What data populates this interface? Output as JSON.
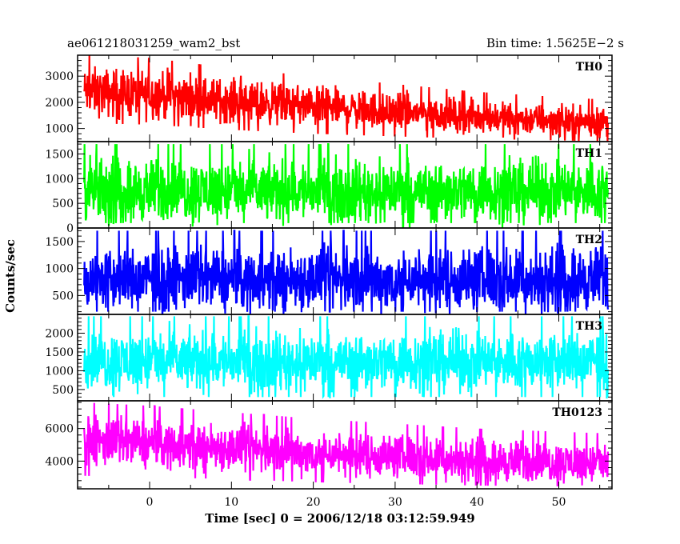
{
  "header": {
    "left": "ae061218031259_wam2_bst",
    "right": "Bin time: 1.5625E−2 s"
  },
  "chart_data": {
    "type": "line",
    "title": "ae061218031259_wam2_bst",
    "subtitle": "Bin time: 1.5625E−2 s",
    "xlabel": "Time [sec] 0 = 2006/12/18 03:12:59.949",
    "ylabel": "Counts/sec",
    "xlim": [
      -8.8,
      56.5
    ],
    "x_ticks": [
      0,
      10,
      20,
      30,
      40,
      50
    ],
    "bin_time": 0.015625,
    "data_x_range": [
      -8,
      56
    ],
    "grid": false,
    "legend": "panel labels inside top-right of each panel",
    "panels": [
      {
        "name": "TH0",
        "color": "#ff0000",
        "ylim": [
          500,
          3800
        ],
        "y_ticks": [
          1000,
          2000,
          3000
        ],
        "envelope_x": [
          -8,
          0,
          10,
          20,
          30,
          40,
          50,
          56
        ],
        "envelope_low": [
          1200,
          1150,
          950,
          800,
          700,
          600,
          550,
          500
        ],
        "envelope_high": [
          3800,
          3700,
          3300,
          3000,
          2700,
          2400,
          2200,
          2100
        ],
        "mean": [
          2400,
          2300,
          2050,
          1850,
          1650,
          1450,
          1300,
          1250
        ]
      },
      {
        "name": "TH1",
        "color": "#00ff00",
        "ylim": [
          0,
          1750
        ],
        "y_ticks": [
          0,
          500,
          1000,
          1500
        ],
        "envelope_x": [
          -8,
          56
        ],
        "envelope_low": [
          100,
          100
        ],
        "envelope_high": [
          1700,
          1700
        ],
        "mean": [
          750,
          750
        ]
      },
      {
        "name": "TH2",
        "color": "#0000ff",
        "ylim": [
          150,
          1750
        ],
        "y_ticks": [
          500,
          1000,
          1500
        ],
        "envelope_x": [
          -8,
          56
        ],
        "envelope_low": [
          200,
          200
        ],
        "envelope_high": [
          1700,
          1700
        ],
        "mean": [
          800,
          800
        ]
      },
      {
        "name": "TH3",
        "color": "#00ffff",
        "ylim": [
          200,
          2500
        ],
        "y_ticks": [
          500,
          1000,
          1500,
          2000
        ],
        "envelope_x": [
          -8,
          56
        ],
        "envelope_low": [
          300,
          300
        ],
        "envelope_high": [
          2450,
          2450
        ],
        "mean": [
          1250,
          1250
        ]
      },
      {
        "name": "TH0123",
        "color": "#ff00ff",
        "ylim": [
          2300,
          7700
        ],
        "y_ticks": [
          4000,
          6000
        ],
        "envelope_x": [
          -8,
          0,
          10,
          20,
          30,
          40,
          50,
          56
        ],
        "envelope_low": [
          3100,
          3000,
          2900,
          2700,
          2600,
          2500,
          2450,
          2400
        ],
        "envelope_high": [
          7600,
          7400,
          7000,
          6600,
          6300,
          6000,
          5800,
          5700
        ],
        "mean": [
          5200,
          5100,
          4800,
          4500,
          4300,
          4050,
          3900,
          3850
        ]
      }
    ]
  }
}
